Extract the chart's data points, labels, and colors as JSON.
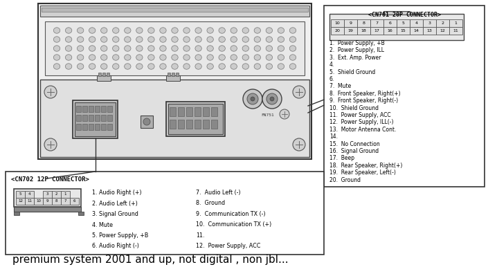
{
  "bg_color": "#ffffff",
  "title_text": "premium system 2001 and up, not digital , non jbl...",
  "title_fontsize": 11,
  "cn701_title": "<CN701 20P CONNECTOR>",
  "cn701_pins_row1": [
    "10",
    "9",
    "8",
    "7",
    "6",
    "5",
    "4",
    "3",
    "2",
    "1"
  ],
  "cn701_pins_row2": [
    "20",
    "19",
    "18",
    "17",
    "16",
    "15",
    "14",
    "13",
    "12",
    "11"
  ],
  "cn701_labels": [
    "1.  Power Supply, +B",
    "2.  Power Supply, ILL",
    "3.  Ext. Amp. Power",
    "4.",
    "5.  Shield Ground",
    "6.",
    "7.  Mute",
    "8.  Front Speaker, Right(+)",
    "9.  Front Speaker, Right(-)",
    "10.  Shield Ground",
    "11.  Power Supply, ACC",
    "12.  Power Supply, ILL(-)",
    "13.  Motor Antenna Cont.",
    "14.",
    "15.  No Connection",
    "16.  Signal Ground",
    "17.  Beep",
    "18.  Rear Speaker, Right(+)",
    "19.  Rear Speaker, Left(-)",
    "20.  Ground"
  ],
  "cn702_title": "<CN702 12P CONNECTOR>",
  "cn702_labels_col1": [
    "1. Audio Right (+)",
    "2. Audio Left (+)",
    "3. Signal Ground",
    "4. Mute",
    "5. Power Supply, +B",
    "6. Audio Right (-)"
  ],
  "cn702_labels_col2": [
    "7.  Audio Left (-)",
    "8.  Ground",
    "9.  Communication TX (-)",
    "10.  Communication TX (+)",
    "11.",
    "12.  Power Supply, ACC"
  ]
}
